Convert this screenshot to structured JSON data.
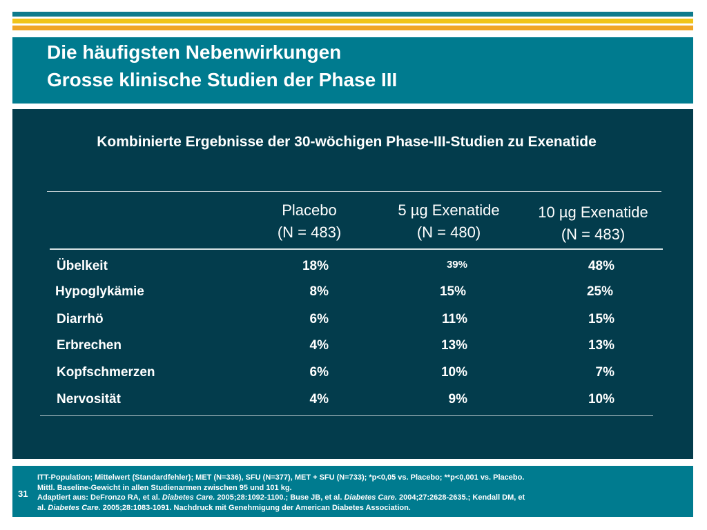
{
  "title": {
    "line1": "Die häufigsten Nebenwirkungen",
    "line2": "Grosse klinische Studien der Phase III"
  },
  "subtitle": "Kombinierte Ergebnisse der 30-wöchigen Phase-III-Studien zu Exenatide",
  "table": {
    "columns": [
      {
        "name": "Placebo",
        "n": "(N = 483)"
      },
      {
        "name": "5 µg Exenatide",
        "n": "(N = 480)"
      },
      {
        "name": "10 µg Exenatide",
        "n": "(N = 483)"
      }
    ],
    "rows": [
      {
        "label": "Übelkeit",
        "values": [
          "18%",
          "39%",
          "48%"
        ]
      },
      {
        "label": "Hypoglykämie",
        "values": [
          "8%",
          "15%",
          "25%"
        ]
      },
      {
        "label": "Diarrhö",
        "values": [
          "6%",
          "11%",
          "15%"
        ]
      },
      {
        "label": "Erbrechen",
        "values": [
          "4%",
          "13%",
          "13%"
        ]
      },
      {
        "label": "Kopfschmerzen",
        "values": [
          "6%",
          "10%",
          "7%"
        ]
      },
      {
        "label": "Nervosität",
        "values": [
          "4%",
          "9%",
          "10%"
        ]
      }
    ]
  },
  "footer": {
    "page_number": "31",
    "line1": "ITT-Population; Mittelwert (Standardfehler); MET (N=336), SFU (N=377), MET + SFU (N=733); *p<0,05 vs. Placebo; **p<0,001 vs. Placebo.",
    "line2": "Mittl. Baseline-Gewicht in allen Studienarmen zwischen 95 und 101 kg.",
    "line3_pre": "Adaptiert aus: DeFronzo RA, et al. ",
    "journal": "Diabetes Care.",
    "line3_mid1": " 2005;28:1092-1100.; Buse JB, et al. ",
    "line3_mid2": " 2004;27:2628-2635.; Kendall DM, et",
    "line4_pre": "al. ",
    "line4_post": " 2005;28:1083-1091. Nachdruck mit Genehmigung der American Diabetes Association."
  }
}
